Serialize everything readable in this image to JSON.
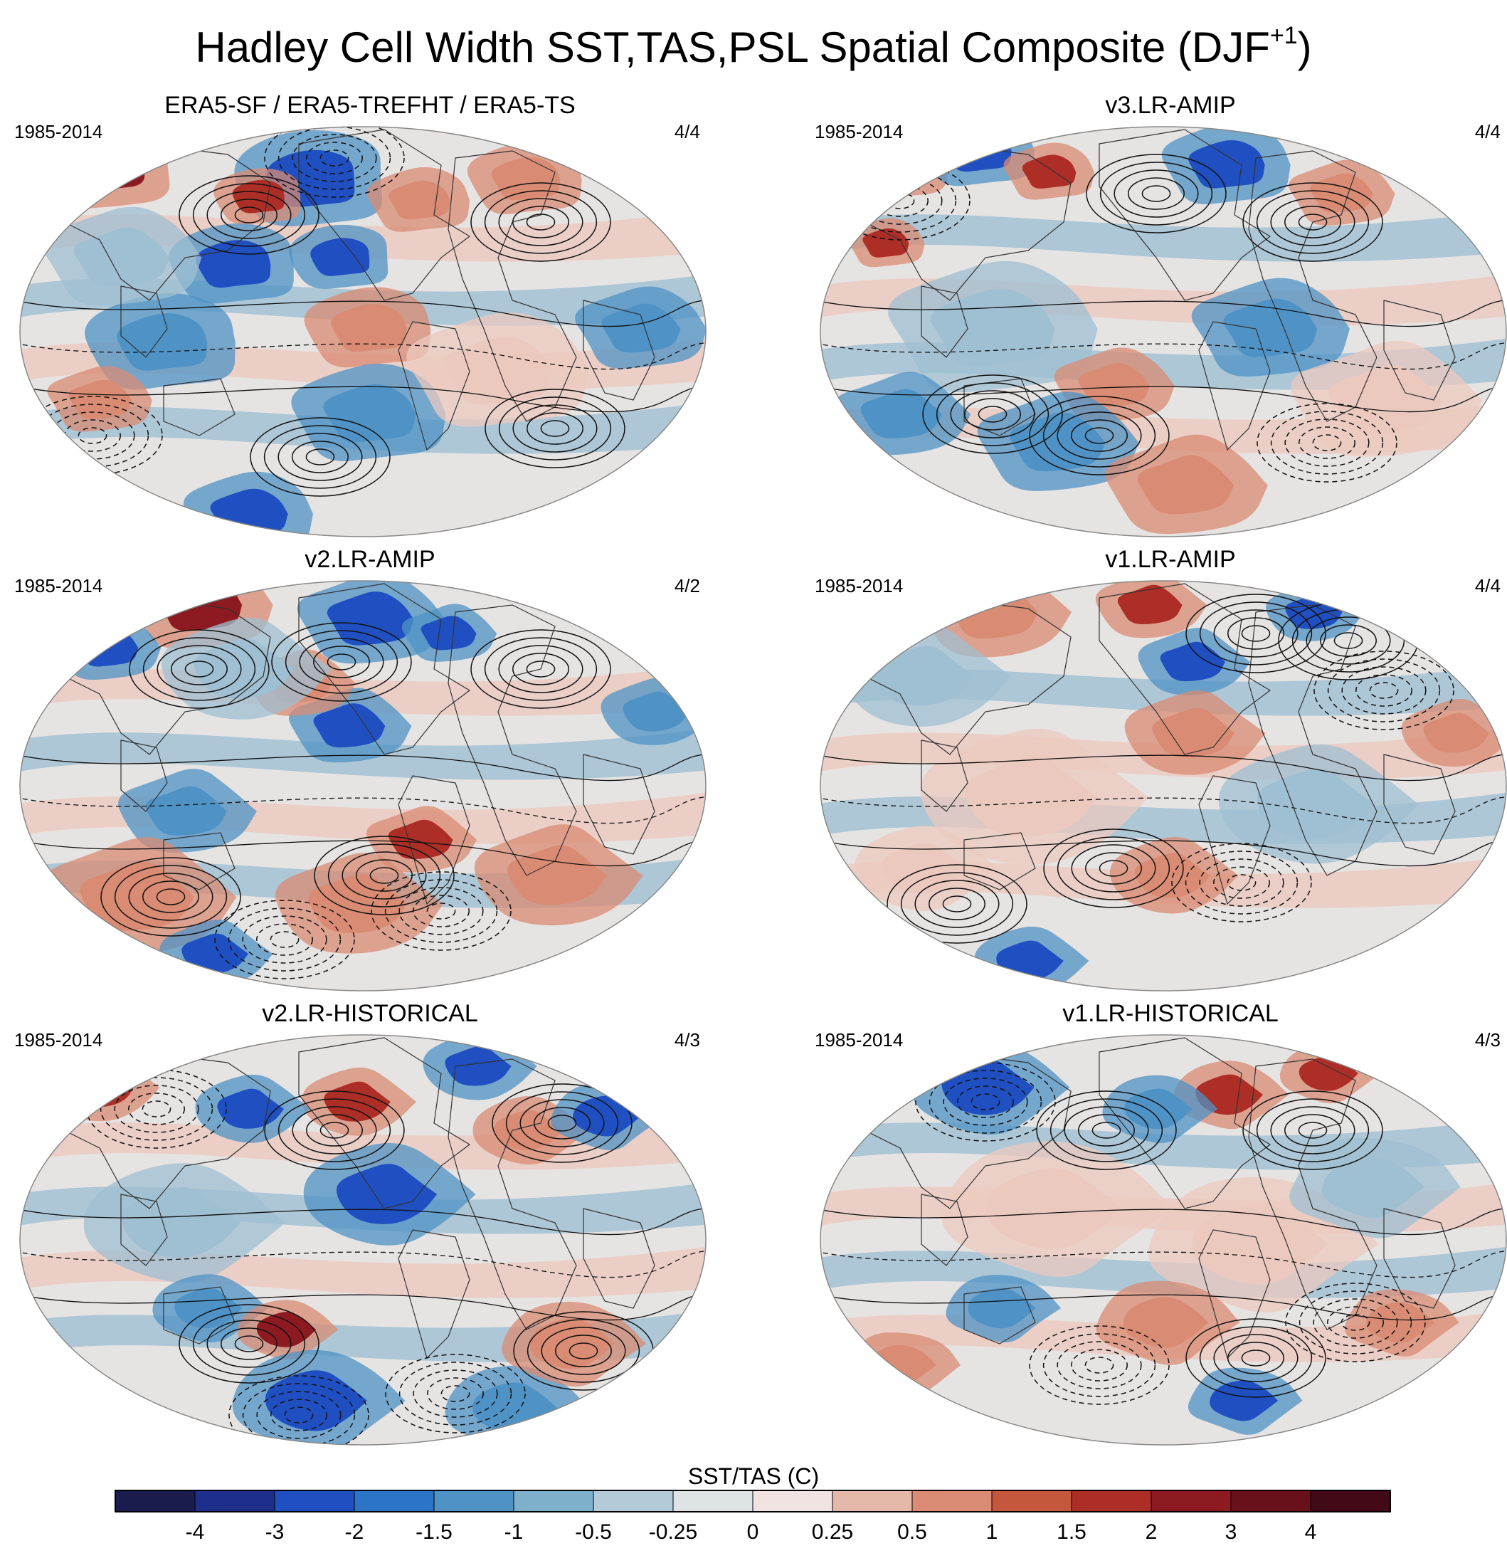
{
  "title": {
    "main": "Hadley Cell Width SST,TAS,PSL Spatial Composite (DJF",
    "superscript": "+1",
    "closing": ")"
  },
  "panels": [
    {
      "title": "ERA5-SF / ERA5-TREFHT / ERA5-TS",
      "years": "1985-2014",
      "ratio": "4/4"
    },
    {
      "title": "v3.LR-AMIP",
      "years": "1985-2014",
      "ratio": "4/4"
    },
    {
      "title": "v2.LR-AMIP",
      "years": "1985-2014",
      "ratio": "4/2"
    },
    {
      "title": "v1.LR-AMIP",
      "years": "1985-2014",
      "ratio": "4/4"
    },
    {
      "title": "v2.LR-HISTORICAL",
      "years": "1985-2014",
      "ratio": "4/3"
    },
    {
      "title": "v1.LR-HISTORICAL",
      "years": "1985-2014",
      "ratio": "4/3"
    }
  ],
  "colorbar": {
    "title": "SST/TAS (C)",
    "tick_labels": [
      "-4",
      "-3",
      "-2",
      "-1.5",
      "-1",
      "-0.5",
      "-0.25",
      "0",
      "0.25",
      "0.5",
      "1",
      "1.5",
      "2",
      "3",
      "4"
    ],
    "colors": [
      "#191c4d",
      "#1d2f8a",
      "#1f4fc1",
      "#2c74c6",
      "#4f93c6",
      "#7eb0cc",
      "#b3cbd8",
      "#dee3e6",
      "#f1e3e1",
      "#e4b9aa",
      "#d98b73",
      "#c5573f",
      "#ad2e26",
      "#8c1a20",
      "#68111c",
      "#420916"
    ]
  },
  "map_colors": {
    "ocean_neutral": "#e6e3e3",
    "land_neutral": "#dfe2e4",
    "strong_cold": "#1f4fc1",
    "cold": "#4f93c6",
    "light_cold": "#9fbfd2",
    "light_warm": "#ecc9bf",
    "warm": "#d98b73",
    "strong_warm": "#ad2e26",
    "very_warm": "#8c1a20"
  }
}
